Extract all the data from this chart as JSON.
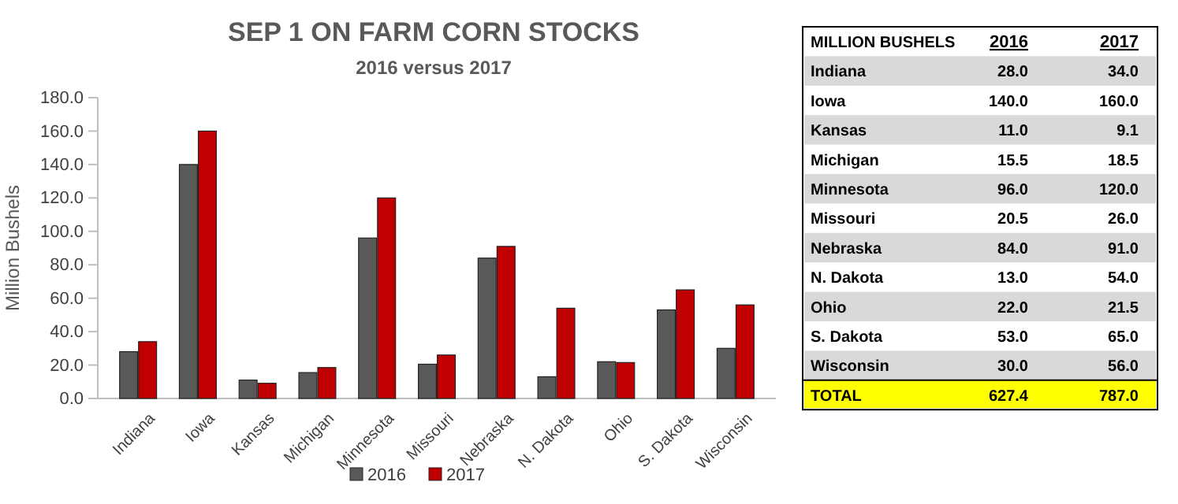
{
  "chart_data": [
    {
      "type": "bar",
      "title": "SEP 1 ON FARM CORN STOCKS",
      "subtitle": "2016 versus 2017",
      "ylabel": "Million Bushels",
      "categories": [
        "Indiana",
        "Iowa",
        "Kansas",
        "Michigan",
        "Minnesota",
        "Missouri",
        "Nebraska",
        "N. Dakota",
        "Ohio",
        "S. Dakota",
        "Wisconsin"
      ],
      "series": [
        {
          "name": "2016",
          "color": "#595959",
          "values": [
            28.0,
            140.0,
            11.0,
            15.5,
            96.0,
            20.5,
            84.0,
            13.0,
            22.0,
            53.0,
            30.0
          ]
        },
        {
          "name": "2017",
          "color": "#c00000",
          "values": [
            34.0,
            160.0,
            9.1,
            18.5,
            120.0,
            26.0,
            91.0,
            54.0,
            21.5,
            65.0,
            56.0
          ]
        }
      ],
      "ylim": [
        0,
        180
      ],
      "yticks": [
        {
          "value": 0,
          "label": "0.0"
        },
        {
          "value": 20,
          "label": "20.0"
        },
        {
          "value": 40,
          "label": "40.0"
        },
        {
          "value": 60,
          "label": "60.0"
        },
        {
          "value": 80,
          "label": "80.0"
        },
        {
          "value": 100,
          "label": "100.0"
        },
        {
          "value": 120,
          "label": "120.0"
        },
        {
          "value": 140,
          "label": "140.0"
        },
        {
          "value": 160,
          "label": "160.0"
        },
        {
          "value": 180,
          "label": "180.0"
        }
      ],
      "legend": "bottom"
    },
    {
      "type": "other",
      "annotations": [
        "MILLION BUSHELS",
        "2016",
        "2017",
        "Indiana",
        "28.0",
        "34.0",
        "Iowa",
        "140.0",
        "160.0",
        "Kansas",
        "11.0",
        "9.1",
        "Michigan",
        "15.5",
        "18.5",
        "Minnesota",
        "96.0",
        "120.0",
        "Missouri",
        "20.5",
        "26.0",
        "Nebraska",
        "84.0",
        "91.0",
        "N. Dakota",
        "13.0",
        "54.0",
        "Ohio",
        "22.0",
        "21.5",
        "S. Dakota",
        "53.0",
        "65.0",
        "Wisconsin",
        "30.0",
        "56.0",
        "TOTAL",
        "627.4",
        "787.0"
      ]
    }
  ]
}
